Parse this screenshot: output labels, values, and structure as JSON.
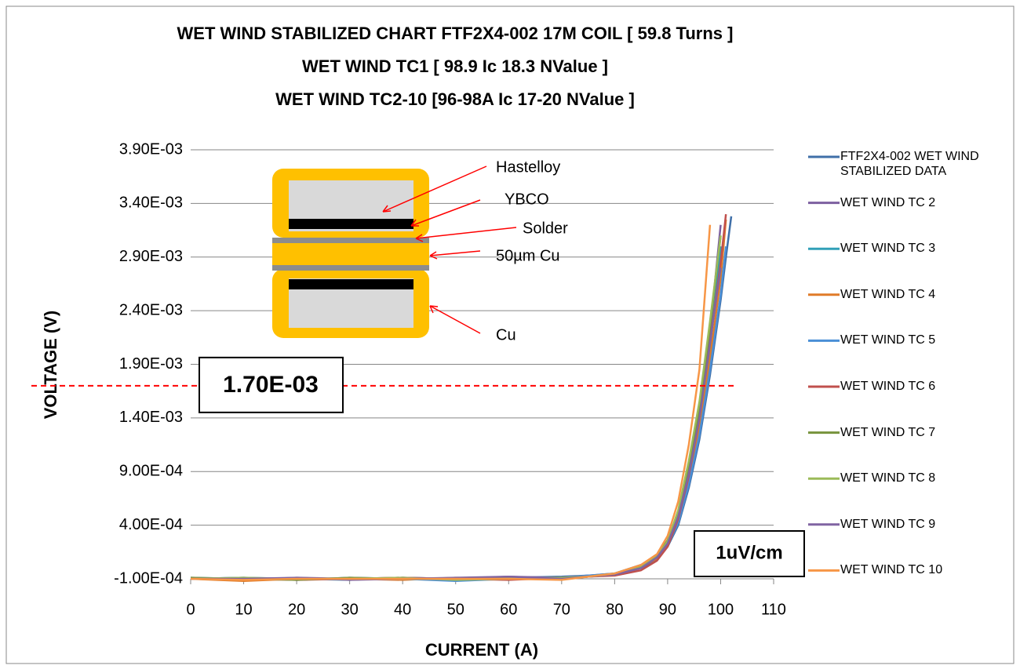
{
  "chart_data": {
    "type": "line",
    "title": "WET WIND STABILIZED CHART FTF2X4-002 17M COIL [ 59.8 Turns ]",
    "subtitle": [
      "WET WIND TC1 [ 98.9 Ic 18.3 NValue ]",
      "WET WIND TC2-10 [96-98A Ic 17-20 NValue ]"
    ],
    "x_label": "CURRENT (A)",
    "y_label": "VOLTAGE (V)",
    "xlim": [
      0,
      110
    ],
    "xticks": [
      0,
      10,
      20,
      30,
      40,
      50,
      60,
      70,
      80,
      90,
      100,
      110
    ],
    "ylim": [
      -0.0001,
      0.0039
    ],
    "yticks": [
      {
        "value": -0.0001,
        "label": "-1.00E-04"
      },
      {
        "value": 0.0004,
        "label": "4.00E-04"
      },
      {
        "value": 0.0009,
        "label": "9.00E-04"
      },
      {
        "value": 0.0014,
        "label": "1.40E-03"
      },
      {
        "value": 0.0019,
        "label": "1.90E-03"
      },
      {
        "value": 0.0024,
        "label": "2.40E-03"
      },
      {
        "value": 0.0029,
        "label": "2.90E-03"
      },
      {
        "value": 0.0034,
        "label": "3.40E-03"
      },
      {
        "value": 0.0039,
        "label": "3.90E-03"
      }
    ],
    "grid": true,
    "legend": "right",
    "reference_line": {
      "value": 0.0017,
      "label": "1.70E-03",
      "color": "#ff0000"
    },
    "annotations": [
      "1uV/cm"
    ],
    "inset_labels": [
      "Hastelloy",
      "YBCO",
      "Solder",
      "50µm Cu",
      "Cu"
    ],
    "x": [
      0,
      10,
      20,
      30,
      40,
      50,
      60,
      70,
      75,
      80,
      85,
      88,
      90,
      92,
      94,
      96,
      98,
      100,
      101,
      102
    ],
    "series": [
      {
        "name": "FTF2X4-002 WET WIND STABILIZED DATA",
        "color": "#3f6fa8",
        "values": [
          -0.0001,
          -9e-05,
          -0.00011,
          -9e-05,
          -0.0001,
          -0.00011,
          -9e-05,
          -8e-05,
          -7e-05,
          -6e-05,
          0.0,
          8e-05,
          0.0002,
          0.0004,
          0.00075,
          0.0012,
          0.0018,
          0.0025,
          0.0029,
          0.00328
        ]
      },
      {
        "name": "WET WIND TC 2",
        "color": "#7d5fa0",
        "values": [
          -0.0001,
          -0.00011,
          -9e-05,
          -0.0001,
          -9e-05,
          -0.0001,
          -8e-05,
          -9e-05,
          -7e-05,
          -5e-05,
          2e-05,
          0.0001,
          0.00024,
          0.0005,
          0.0009,
          0.00145,
          0.0022,
          0.0032,
          null,
          null
        ]
      },
      {
        "name": "WET WIND TC 3",
        "color": "#31a0b8",
        "values": [
          -9e-05,
          -0.0001,
          -0.0001,
          -0.00011,
          -9e-05,
          -0.0001,
          -0.0001,
          -9e-05,
          -8e-05,
          -6e-05,
          1e-05,
          0.0001,
          0.00022,
          0.00046,
          0.00085,
          0.00135,
          0.00205,
          0.003,
          null,
          null
        ]
      },
      {
        "name": "WET WIND TC 4",
        "color": "#e07b28",
        "values": [
          -0.0001,
          -0.00012,
          -0.0001,
          -0.0001,
          -0.00011,
          -9e-05,
          -0.0001,
          -0.0001,
          -8e-05,
          -6e-05,
          1e-05,
          9e-05,
          0.00021,
          0.00044,
          0.00082,
          0.0013,
          0.00195,
          0.0027,
          0.00325,
          null
        ]
      },
      {
        "name": "WET WIND TC 5",
        "color": "#4a8fd6",
        "values": [
          -0.0001,
          -9e-05,
          -0.0001,
          -0.0001,
          -0.0001,
          -0.00012,
          -0.0001,
          -9e-05,
          -7e-05,
          -5e-05,
          3e-05,
          0.0001,
          0.00021,
          0.00042,
          0.00078,
          0.00124,
          0.00185,
          0.00255,
          0.003,
          null
        ]
      },
      {
        "name": "WET WIND TC 6",
        "color": "#c0504d",
        "values": [
          -0.0001,
          -0.0001,
          -0.00011,
          -0.0001,
          -9e-05,
          -0.0001,
          -0.00011,
          -9e-05,
          -8e-05,
          -7e-05,
          -2e-05,
          7e-05,
          0.0002,
          0.00046,
          0.00086,
          0.0014,
          0.0021,
          0.00285,
          0.0033,
          null
        ]
      },
      {
        "name": "WET WIND TC 7",
        "color": "#77933c",
        "values": [
          -9e-05,
          -0.0001,
          -0.00011,
          -9e-05,
          -0.0001,
          -0.0001,
          -9e-05,
          -0.0001,
          -8e-05,
          -5e-05,
          2e-05,
          0.00012,
          0.00026,
          0.00052,
          0.00095,
          0.0015,
          0.00225,
          0.0031,
          null,
          null
        ]
      },
      {
        "name": "WET WIND TC 8",
        "color": "#9bbb59",
        "values": [
          -0.0001,
          -9e-05,
          -0.0001,
          -0.0001,
          -9e-05,
          -0.00011,
          -0.0001,
          -9e-05,
          -8e-05,
          -6e-05,
          1e-05,
          0.00011,
          0.00025,
          0.00054,
          0.001,
          0.00155,
          0.0023,
          0.0031,
          null,
          null
        ]
      },
      {
        "name": "WET WIND TC 9",
        "color": "#8064a2",
        "values": [
          -0.0001,
          -0.0001,
          -9e-05,
          -0.00011,
          -0.0001,
          -9e-05,
          -8e-05,
          -0.0001,
          -8e-05,
          -6e-05,
          0.0,
          0.0001,
          0.00023,
          0.00048,
          0.00088,
          0.0014,
          0.0021,
          0.0028,
          null,
          null
        ]
      },
      {
        "name": "WET WIND TC 10",
        "color": "#f79646",
        "values": [
          -0.0001,
          -0.00011,
          -0.0001,
          -0.0001,
          -0.0001,
          -0.0001,
          -0.0001,
          -0.00011,
          -8e-05,
          -5e-05,
          3e-05,
          0.00013,
          0.0003,
          0.00062,
          0.00115,
          0.00185,
          0.0032,
          null,
          null,
          null
        ]
      }
    ]
  }
}
